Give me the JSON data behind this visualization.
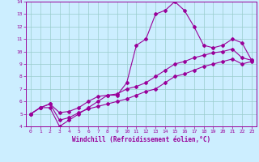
{
  "xlabel": "Windchill (Refroidissement éolien,°C)",
  "background_color": "#cceeff",
  "line_color": "#990099",
  "grid_color": "#99cccc",
  "xlim": [
    -0.5,
    23.5
  ],
  "ylim": [
    4,
    14
  ],
  "xticks": [
    0,
    1,
    2,
    3,
    4,
    5,
    6,
    7,
    8,
    9,
    10,
    11,
    12,
    13,
    14,
    15,
    16,
    17,
    18,
    19,
    20,
    21,
    22,
    23
  ],
  "yticks": [
    4,
    5,
    6,
    7,
    8,
    9,
    10,
    11,
    12,
    13,
    14
  ],
  "line1_x": [
    0,
    1,
    2,
    3,
    4,
    5,
    6,
    7,
    8,
    9,
    10,
    11,
    12,
    13,
    14,
    15,
    16,
    17,
    18,
    19,
    20,
    21,
    22,
    23
  ],
  "line1_y": [
    5.0,
    5.5,
    5.5,
    4.0,
    4.5,
    5.0,
    5.5,
    6.0,
    6.5,
    6.5,
    7.5,
    10.5,
    11.0,
    13.0,
    13.3,
    14.0,
    13.3,
    12.0,
    10.5,
    10.3,
    10.5,
    11.0,
    10.7,
    9.3
  ],
  "line2_x": [
    0,
    1,
    2,
    3,
    4,
    5,
    6,
    7,
    8,
    9,
    10,
    11,
    12,
    13,
    14,
    15,
    16,
    17,
    18,
    19,
    20,
    21,
    22,
    23
  ],
  "line2_y": [
    5.0,
    5.5,
    5.8,
    5.1,
    5.2,
    5.5,
    6.0,
    6.4,
    6.5,
    6.6,
    7.0,
    7.2,
    7.5,
    8.0,
    8.5,
    9.0,
    9.2,
    9.5,
    9.7,
    9.9,
    10.0,
    10.2,
    9.5,
    9.3
  ],
  "line3_x": [
    0,
    1,
    2,
    3,
    4,
    5,
    6,
    7,
    8,
    9,
    10,
    11,
    12,
    13,
    14,
    15,
    16,
    17,
    18,
    19,
    20,
    21,
    22,
    23
  ],
  "line3_y": [
    5.0,
    5.5,
    5.8,
    4.5,
    4.7,
    5.1,
    5.4,
    5.6,
    5.8,
    6.0,
    6.2,
    6.5,
    6.8,
    7.0,
    7.5,
    8.0,
    8.2,
    8.5,
    8.8,
    9.0,
    9.2,
    9.4,
    9.0,
    9.2
  ],
  "tick_fontsize": 4.5,
  "xlabel_fontsize": 5.5
}
